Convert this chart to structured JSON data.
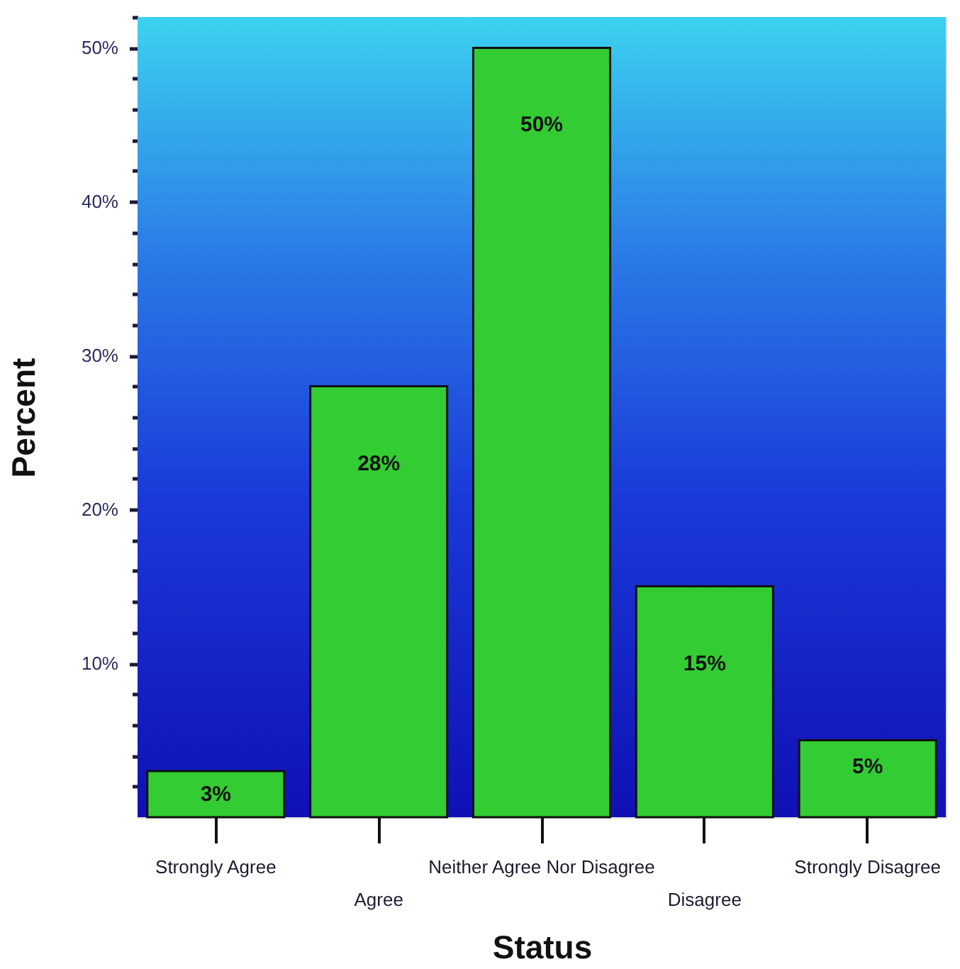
{
  "chart_data": {
    "type": "bar",
    "xlabel": "Status",
    "ylabel": "Percent",
    "categories": [
      "Strongly Agree",
      "Agree",
      "Neither Agree Nor Disagree",
      "Disagree",
      "Strongly Disagree"
    ],
    "values": [
      3,
      28,
      50,
      15,
      5
    ],
    "color": "#33cc33",
    "value_labels": [
      "3%",
      "28%",
      "50%",
      "15%",
      "5%"
    ],
    "ylim": [
      0,
      52
    ],
    "yticks": [
      {
        "value": 2,
        "label": null
      },
      {
        "value": 4,
        "label": null
      },
      {
        "value": 6,
        "label": null
      },
      {
        "value": 8,
        "label": null
      },
      {
        "value": 10,
        "label": "10%"
      },
      {
        "value": 12,
        "label": null
      },
      {
        "value": 14,
        "label": null
      },
      {
        "value": 16,
        "label": null
      },
      {
        "value": 18,
        "label": null
      },
      {
        "value": 20,
        "label": "20%"
      },
      {
        "value": 22,
        "label": null
      },
      {
        "value": 24,
        "label": null
      },
      {
        "value": 26,
        "label": null
      },
      {
        "value": 28,
        "label": null
      },
      {
        "value": 30,
        "label": "30%"
      },
      {
        "value": 32,
        "label": null
      },
      {
        "value": 34,
        "label": null
      },
      {
        "value": 36,
        "label": null
      },
      {
        "value": 38,
        "label": null
      },
      {
        "value": 40,
        "label": "40%"
      },
      {
        "value": 42,
        "label": null
      },
      {
        "value": 44,
        "label": null
      },
      {
        "value": 46,
        "label": null
      },
      {
        "value": 48,
        "label": null
      },
      {
        "value": 50,
        "label": "50%"
      },
      {
        "value": 52,
        "label": null
      }
    ]
  }
}
